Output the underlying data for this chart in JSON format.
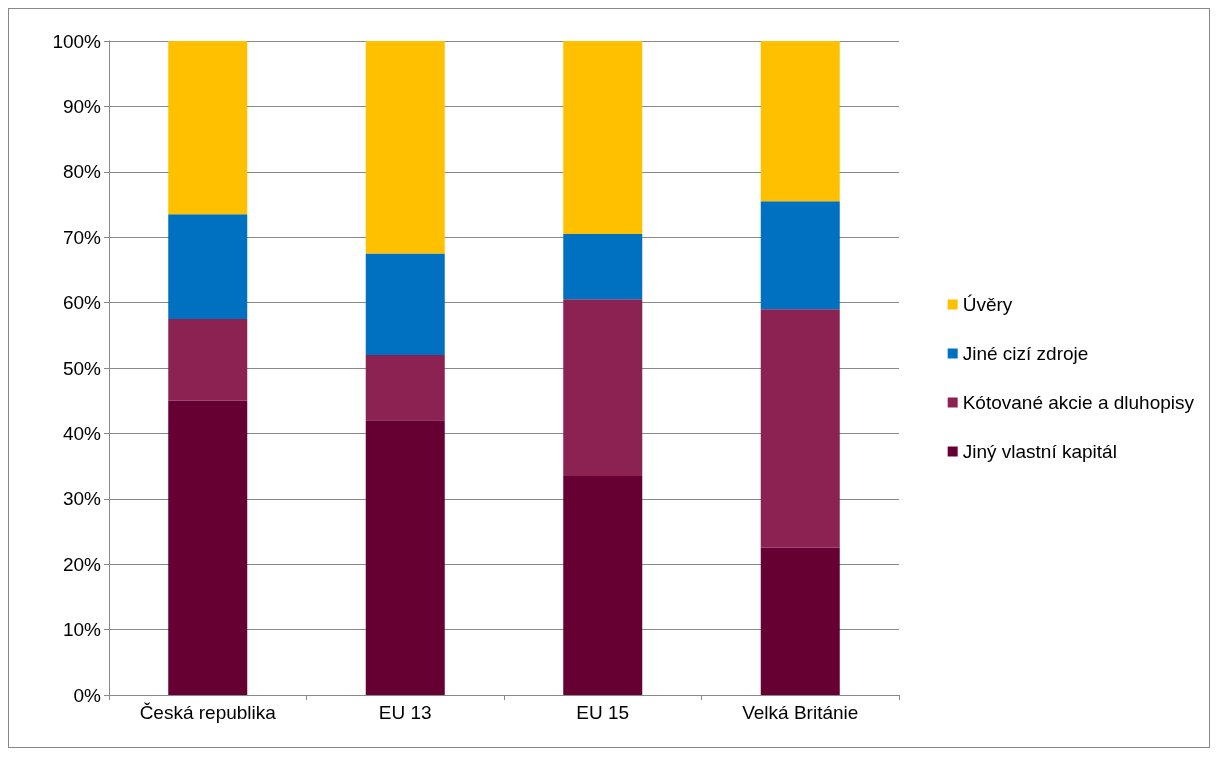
{
  "chart_data": {
    "type": "bar",
    "stacked": true,
    "categories": [
      "Česká republika",
      "EU 13",
      "EU 15",
      "Velká Británie"
    ],
    "series": [
      {
        "name": "Jiný vlastní kapitál",
        "color": "#660033",
        "values": [
          45,
          42,
          33.5,
          22.5
        ]
      },
      {
        "name": "Kótované akcie a dluhopisy",
        "color": "#8b2252",
        "values": [
          12.5,
          10,
          27,
          36.5
        ]
      },
      {
        "name": "Jiné cizí zdroje",
        "color": "#0070c0",
        "values": [
          16,
          15.5,
          10,
          16.5
        ]
      },
      {
        "name": "Úvěry",
        "color": "#ffc000",
        "values": [
          26.5,
          32.5,
          29.5,
          24.5
        ]
      }
    ],
    "ylim": [
      0,
      100
    ],
    "yticks": [
      {
        "value": 0,
        "label": "0%"
      },
      {
        "value": 10,
        "label": "10%"
      },
      {
        "value": 20,
        "label": "20%"
      },
      {
        "value": 30,
        "label": "30%"
      },
      {
        "value": 40,
        "label": "40%"
      },
      {
        "value": 50,
        "label": "50%"
      },
      {
        "value": 60,
        "label": "60%"
      },
      {
        "value": 70,
        "label": "70%"
      },
      {
        "value": 80,
        "label": "80%"
      },
      {
        "value": 90,
        "label": "90%"
      },
      {
        "value": 100,
        "label": "100%"
      }
    ],
    "grid": "y",
    "legend": "right"
  }
}
